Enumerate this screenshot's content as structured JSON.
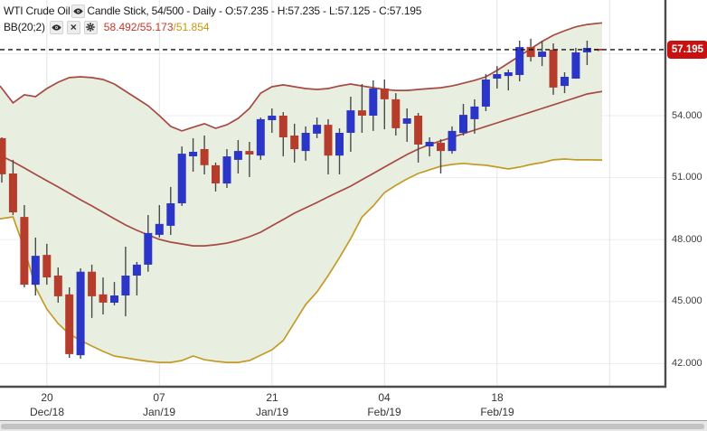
{
  "legend": {
    "row1": {
      "symbol": "WTI Crude Oil",
      "series_label": "Candle Stick, 54/500 - Daily - O:57.235 - H:57.235 - L:57.125 - C:57.195"
    },
    "row2": {
      "indicator": "BB(20;2)",
      "values_main": "58.492/55.173",
      "values_lower": "/51.854",
      "values_main_color": "#c2372b",
      "values_lower_color": "#c8960c"
    }
  },
  "price_badge": {
    "value": "57.195",
    "color": "#c81212"
  },
  "chart_data": {
    "type": "candlestick",
    "title": "WTI Crude Oil - Daily candlestick chart with Bollinger Bands BB(20;2)",
    "y_axis": {
      "tick_labels": [
        "54.000",
        "51.000",
        "48.000",
        "45.000",
        "42.000"
      ],
      "tick_values": [
        54,
        51,
        48,
        45,
        42
      ],
      "gridline_values": [
        57,
        54,
        51,
        48,
        45,
        42
      ]
    },
    "x_axis": {
      "labels": [
        {
          "index": 4,
          "day": "20",
          "month": "Dec/18"
        },
        {
          "index": 14,
          "day": "07",
          "month": "Jan/19"
        },
        {
          "index": 24,
          "day": "21",
          "month": "Jan/19"
        },
        {
          "index": 34,
          "day": "04",
          "month": "Feb/19"
        },
        {
          "index": 44,
          "day": "18",
          "month": "Feb/19"
        }
      ],
      "gridline_indices": [
        4,
        14,
        24,
        34,
        44,
        54
      ]
    },
    "last_price": 57.195,
    "candles": [
      {
        "o": 52.91,
        "h": 52.95,
        "l": 50.76,
        "c": 51.16
      },
      {
        "o": 51.2,
        "h": 51.86,
        "l": 49.19,
        "c": 49.32
      },
      {
        "o": 49.1,
        "h": 49.67,
        "l": 45.69,
        "c": 45.82
      },
      {
        "o": 45.82,
        "h": 48.1,
        "l": 45.3,
        "c": 47.22
      },
      {
        "o": 47.26,
        "h": 47.8,
        "l": 45.82,
        "c": 46.17
      },
      {
        "o": 46.26,
        "h": 46.65,
        "l": 44.95,
        "c": 45.26
      },
      {
        "o": 45.35,
        "h": 45.69,
        "l": 42.28,
        "c": 42.46
      },
      {
        "o": 42.41,
        "h": 46.61,
        "l": 42.24,
        "c": 46.45
      },
      {
        "o": 46.45,
        "h": 46.79,
        "l": 44.21,
        "c": 45.26
      },
      {
        "o": 45.35,
        "h": 46.17,
        "l": 44.38,
        "c": 44.95
      },
      {
        "o": 44.95,
        "h": 45.95,
        "l": 44.82,
        "c": 45.3
      },
      {
        "o": 45.3,
        "h": 47.66,
        "l": 44.29,
        "c": 46.26
      },
      {
        "o": 46.26,
        "h": 46.92,
        "l": 45.3,
        "c": 46.79
      },
      {
        "o": 46.79,
        "h": 49.19,
        "l": 46.45,
        "c": 48.32
      },
      {
        "o": 48.23,
        "h": 49.67,
        "l": 48.1,
        "c": 48.76
      },
      {
        "o": 48.67,
        "h": 50.55,
        "l": 48.23,
        "c": 49.76
      },
      {
        "o": 49.76,
        "h": 52.51,
        "l": 49.63,
        "c": 52.16
      },
      {
        "o": 52.03,
        "h": 52.91,
        "l": 51.29,
        "c": 52.25
      },
      {
        "o": 52.38,
        "h": 53.04,
        "l": 51.16,
        "c": 51.6
      },
      {
        "o": 51.6,
        "h": 51.73,
        "l": 50.33,
        "c": 50.72
      },
      {
        "o": 50.72,
        "h": 52.38,
        "l": 50.5,
        "c": 52.03
      },
      {
        "o": 51.86,
        "h": 52.82,
        "l": 51.2,
        "c": 52.29
      },
      {
        "o": 52.29,
        "h": 52.73,
        "l": 51.03,
        "c": 52.12
      },
      {
        "o": 52.07,
        "h": 53.91,
        "l": 51.86,
        "c": 53.83
      },
      {
        "o": 53.78,
        "h": 54.35,
        "l": 53.17,
        "c": 54.0
      },
      {
        "o": 54.0,
        "h": 54.17,
        "l": 52.03,
        "c": 52.95
      },
      {
        "o": 53.04,
        "h": 53.61,
        "l": 51.73,
        "c": 52.38
      },
      {
        "o": 52.29,
        "h": 53.48,
        "l": 51.82,
        "c": 53.17
      },
      {
        "o": 53.13,
        "h": 53.91,
        "l": 52.91,
        "c": 53.56
      },
      {
        "o": 53.56,
        "h": 53.83,
        "l": 51.16,
        "c": 52.07
      },
      {
        "o": 52.07,
        "h": 53.39,
        "l": 51.16,
        "c": 53.17
      },
      {
        "o": 53.17,
        "h": 54.92,
        "l": 52.25,
        "c": 54.26
      },
      {
        "o": 54.26,
        "h": 55.53,
        "l": 53.17,
        "c": 54.0
      },
      {
        "o": 54.0,
        "h": 55.71,
        "l": 53.26,
        "c": 55.31
      },
      {
        "o": 55.31,
        "h": 55.75,
        "l": 53.34,
        "c": 54.79
      },
      {
        "o": 54.79,
        "h": 55.09,
        "l": 53.04,
        "c": 53.39
      },
      {
        "o": 53.61,
        "h": 54.35,
        "l": 52.73,
        "c": 53.87
      },
      {
        "o": 54.0,
        "h": 54.13,
        "l": 51.73,
        "c": 52.6
      },
      {
        "o": 52.51,
        "h": 52.95,
        "l": 52.03,
        "c": 52.73
      },
      {
        "o": 52.69,
        "h": 52.86,
        "l": 51.2,
        "c": 52.29
      },
      {
        "o": 52.29,
        "h": 53.48,
        "l": 52.16,
        "c": 53.26
      },
      {
        "o": 53.17,
        "h": 54.57,
        "l": 53.04,
        "c": 54.04
      },
      {
        "o": 53.83,
        "h": 54.79,
        "l": 53.13,
        "c": 54.44
      },
      {
        "o": 54.44,
        "h": 56.01,
        "l": 54.22,
        "c": 55.75
      },
      {
        "o": 55.79,
        "h": 56.4,
        "l": 55.31,
        "c": 56.01
      },
      {
        "o": 55.92,
        "h": 56.23,
        "l": 55.22,
        "c": 56.1
      },
      {
        "o": 55.97,
        "h": 57.63,
        "l": 55.66,
        "c": 57.32
      },
      {
        "o": 57.32,
        "h": 57.72,
        "l": 56.62,
        "c": 56.84
      },
      {
        "o": 56.84,
        "h": 57.63,
        "l": 56.4,
        "c": 57.1
      },
      {
        "o": 57.19,
        "h": 57.5,
        "l": 55.01,
        "c": 55.36
      },
      {
        "o": 55.44,
        "h": 56.1,
        "l": 55.09,
        "c": 55.88
      },
      {
        "o": 55.79,
        "h": 57.28,
        "l": 55.79,
        "c": 57.06
      },
      {
        "o": 57.06,
        "h": 57.63,
        "l": 56.45,
        "c": 57.28
      },
      {
        "o": 57.235,
        "h": 57.235,
        "l": 57.125,
        "c": 57.195
      }
    ],
    "bands": {
      "upper": [
        55.44,
        54.62,
        55.01,
        54.92,
        55.31,
        55.62,
        55.84,
        55.88,
        55.84,
        55.75,
        55.53,
        55.18,
        54.83,
        54.48,
        54.0,
        53.48,
        53.26,
        53.44,
        53.61,
        53.39,
        53.56,
        53.87,
        54.35,
        55.09,
        55.4,
        55.49,
        55.4,
        55.31,
        55.27,
        55.31,
        55.44,
        55.53,
        55.44,
        55.35,
        55.27,
        55.22,
        55.22,
        55.27,
        55.31,
        55.35,
        55.44,
        55.57,
        55.71,
        55.88,
        56.19,
        56.54,
        56.89,
        57.24,
        57.59,
        57.89,
        58.11,
        58.3,
        58.41,
        58.492
      ],
      "middle": [
        52.08,
        51.77,
        51.47,
        51.16,
        50.85,
        50.55,
        50.24,
        49.93,
        49.63,
        49.32,
        49.01,
        48.71,
        48.45,
        48.23,
        48.01,
        47.88,
        47.79,
        47.7,
        47.7,
        47.75,
        47.83,
        47.97,
        48.14,
        48.36,
        48.67,
        48.97,
        49.28,
        49.54,
        49.8,
        50.07,
        50.33,
        50.59,
        50.9,
        51.2,
        51.51,
        51.82,
        52.12,
        52.38,
        52.6,
        52.78,
        52.95,
        53.13,
        53.3,
        53.48,
        53.65,
        53.83,
        54.0,
        54.17,
        54.35,
        54.52,
        54.7,
        54.87,
        55.05,
        55.173
      ],
      "lower": [
        49.01,
        49.1,
        47.57,
        45.69,
        44.64,
        43.94,
        43.43,
        43.12,
        42.85,
        42.59,
        42.37,
        42.28,
        42.19,
        42.11,
        42.06,
        42.06,
        42.15,
        42.37,
        42.19,
        42.11,
        42.06,
        42.06,
        42.15,
        42.41,
        42.67,
        43.12,
        43.99,
        44.86,
        45.47,
        46.26,
        47.13,
        48.05,
        49.1,
        49.63,
        50.28,
        50.63,
        50.94,
        51.2,
        51.38,
        51.55,
        51.64,
        51.69,
        51.64,
        51.6,
        51.51,
        51.42,
        51.51,
        51.64,
        51.73,
        51.86,
        51.9,
        51.86,
        51.86,
        51.854
      ]
    },
    "colors": {
      "up": "#2b35c8",
      "down": "#b63c2c",
      "wick": "#4a4a4a",
      "band_line": "#a64a42",
      "band_lower_line": "#c39b27",
      "band_fill": "#e9efe0",
      "grid": "#e5e5e5",
      "grid_h": "#ededed",
      "border": "#4c4c4c",
      "dashed_line": "#111111"
    }
  }
}
